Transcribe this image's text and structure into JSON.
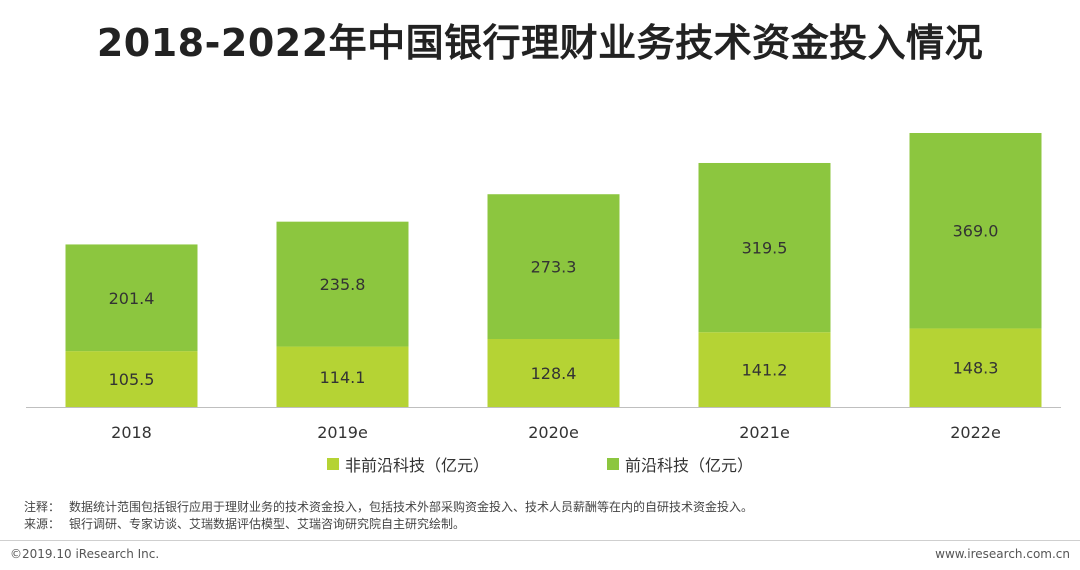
{
  "header": {
    "title": "2018-2022年中国银行理财业务技术资金投入情况"
  },
  "chart_data": {
    "type": "bar",
    "stacked": true,
    "categories": [
      "2018",
      "2019e",
      "2020e",
      "2021e",
      "2022e"
    ],
    "series": [
      {
        "name": "非前沿科技（亿元）",
        "values": [
          105.5,
          114.1,
          128.4,
          141.2,
          148.3
        ],
        "color": "#b5d334"
      },
      {
        "name": "前沿科技（亿元）",
        "values": [
          201.4,
          235.8,
          273.3,
          319.5,
          369.0
        ],
        "color": "#8cc63f"
      }
    ],
    "ylim": [
      0,
      517.3
    ],
    "grid": false,
    "legend": "bottom",
    "data_labels": true,
    "value_label_color": "#333333"
  },
  "notes": {
    "note_label": "注释：",
    "note_text": "数据统计范围包括银行应用于理财业务的技术资金投入，包括技术外部采购资金投入、技术人员薪酬等在内的自研技术资金投入。",
    "source_label": "来源：",
    "source_text": "银行调研、专家访谈、艾瑞数据评估模型、艾瑞咨询研究院自主研究绘制。"
  },
  "footer": {
    "copyright": "©2019.10 iResearch Inc.",
    "website": "www.iresearch.com.cn"
  }
}
